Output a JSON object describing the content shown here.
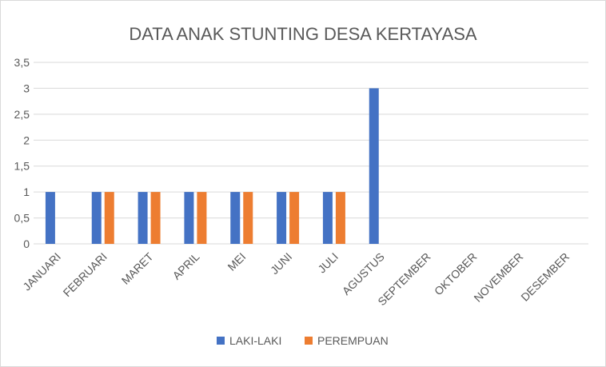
{
  "chart_data": {
    "type": "bar",
    "title": "DATA ANAK STUNTING DESA KERTAYASA",
    "categories": [
      "JANUARI",
      "FEBRUARI",
      "MARET",
      "APRIL",
      "MEI",
      "JUNI",
      "JULI",
      "AGUSTUS",
      "SEPTEMBER",
      "OKTOBER",
      "NOVEMBER",
      "DESEMBER"
    ],
    "series": [
      {
        "name": "LAKI-LAKI",
        "color": "#4472C4",
        "values": [
          1,
          1,
          1,
          1,
          1,
          1,
          1,
          3,
          0,
          0,
          0,
          0
        ]
      },
      {
        "name": "PEREMPUAN",
        "color": "#ED7D31",
        "values": [
          0,
          1,
          1,
          1,
          1,
          1,
          1,
          0,
          0,
          0,
          0,
          0
        ]
      }
    ],
    "ylim": [
      0,
      3.5
    ],
    "yticks": [
      "0",
      "0,5",
      "1",
      "1,5",
      "2",
      "2,5",
      "3",
      "3,5"
    ],
    "grid": true,
    "legend_position": "bottom"
  }
}
